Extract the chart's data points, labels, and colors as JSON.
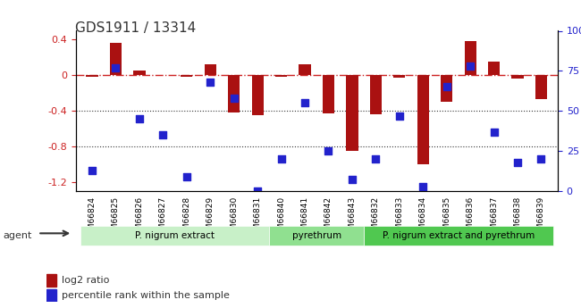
{
  "title": "GDS1911 / 13314",
  "samples": [
    "GSM66824",
    "GSM66825",
    "GSM66826",
    "GSM66827",
    "GSM66828",
    "GSM66829",
    "GSM66830",
    "GSM66831",
    "GSM66840",
    "GSM66841",
    "GSM66842",
    "GSM66843",
    "GSM66832",
    "GSM66833",
    "GSM66834",
    "GSM66835",
    "GSM66836",
    "GSM66837",
    "GSM66838",
    "GSM66839"
  ],
  "log2_ratio": [
    -0.02,
    0.36,
    0.05,
    0.0,
    -0.02,
    0.12,
    -0.42,
    -0.45,
    -0.02,
    0.12,
    -0.43,
    -0.85,
    -0.44,
    -0.03,
    -1.0,
    -0.3,
    0.38,
    0.15,
    -0.04,
    -0.27
  ],
  "pct_rank": [
    13,
    77,
    45,
    35,
    9,
    68,
    58,
    0,
    20,
    55,
    25,
    7,
    20,
    47,
    3,
    65,
    78,
    37,
    18,
    20
  ],
  "groups": [
    {
      "label": "P. nigrum extract",
      "start": 0,
      "end": 8,
      "color": "#c8f0c8"
    },
    {
      "label": "pyrethrum",
      "start": 8,
      "end": 12,
      "color": "#90e090"
    },
    {
      "label": "P. nigrum extract and pyrethrum",
      "start": 12,
      "end": 20,
      "color": "#50c850"
    }
  ],
  "ylim_left": [
    -1.3,
    0.5
  ],
  "ylim_right": [
    0,
    100
  ],
  "bar_color": "#aa1111",
  "dot_color": "#2222cc",
  "hline_color": "#cc2222",
  "grid_color": "#333333",
  "bg_color": "#ffffff",
  "agent_label": "agent",
  "legend_bar": "log2 ratio",
  "legend_dot": "percentile rank within the sample"
}
